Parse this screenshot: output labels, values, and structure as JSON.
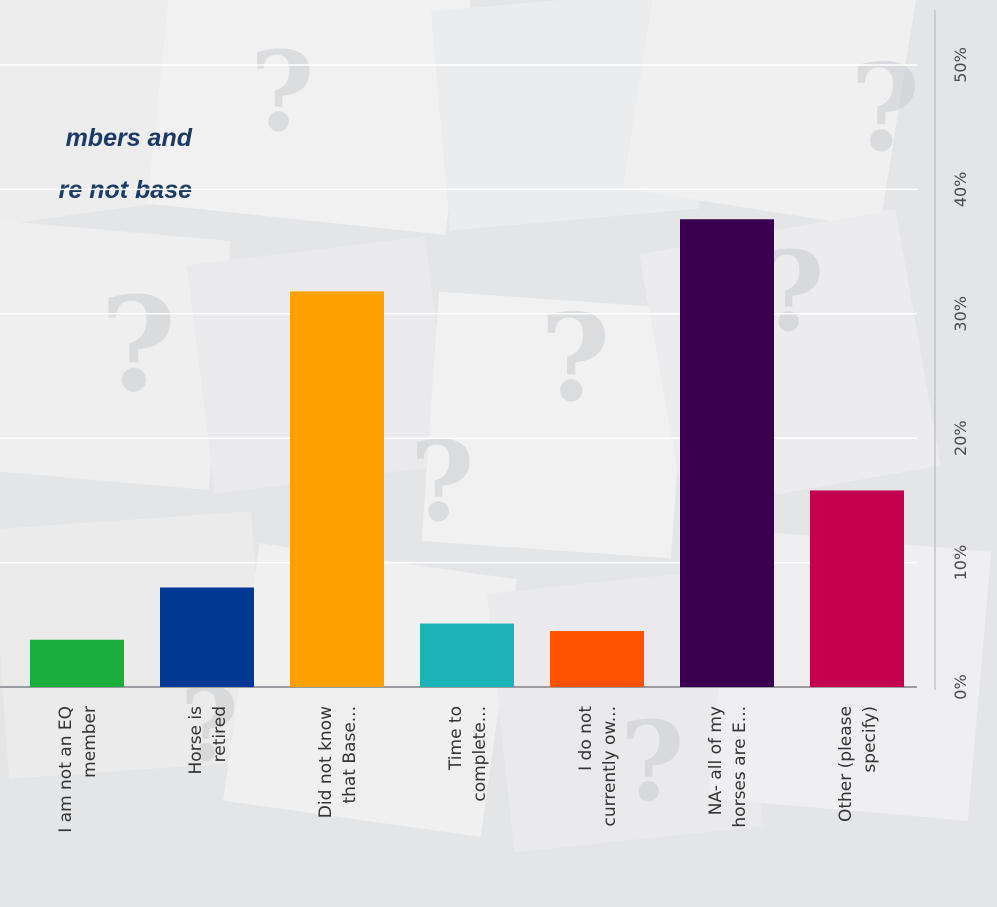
{
  "chart_data": {
    "type": "bar",
    "title_fragments": [
      "mbers and",
      "re not base"
    ],
    "categories": [
      [
        "I am not an EQ",
        "member"
      ],
      [
        "Horse is",
        "retired"
      ],
      [
        "Did not know",
        "that Base..."
      ],
      [
        "Time to",
        "complete..."
      ],
      [
        "I do not",
        "currently ow..."
      ],
      [
        "NA- all of my",
        "horses are E..."
      ],
      [
        "Other (please",
        "specify)"
      ]
    ],
    "values": [
      3.8,
      8.0,
      31.8,
      5.1,
      4.5,
      37.6,
      15.8
    ],
    "colors": [
      "#1aad3c",
      "#013894",
      "#fba200",
      "#1ab3b8",
      "#fe5200",
      "#39004f",
      "#c4004f"
    ],
    "y_ticks": [
      "0%",
      "10%",
      "20%",
      "30%",
      "40%",
      "50%"
    ],
    "ylim": [
      0,
      50
    ],
    "grid": true,
    "orientation": "rotated-90-clockwise"
  }
}
